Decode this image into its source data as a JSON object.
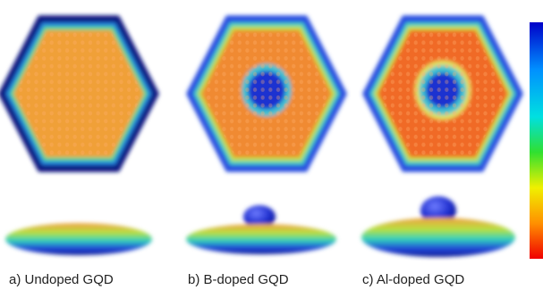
{
  "panels": [
    {
      "label": "a) Undoped GQD"
    },
    {
      "label": "b) B-doped GQD"
    },
    {
      "label": "c) Al-doped GQD"
    }
  ]
}
